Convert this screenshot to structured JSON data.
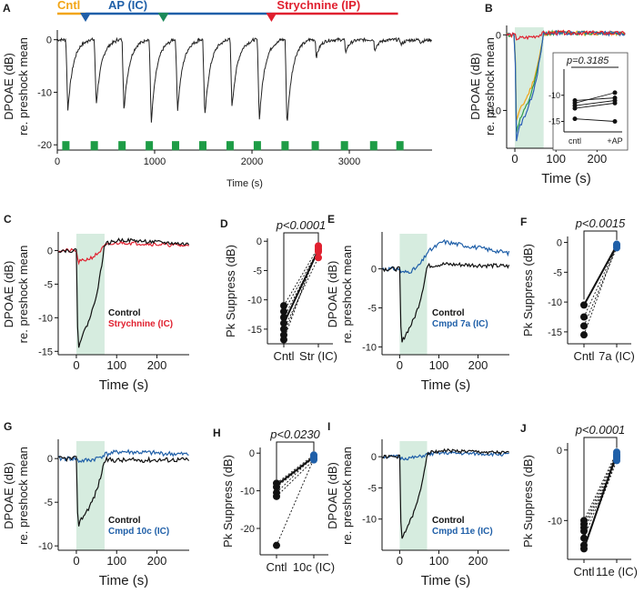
{
  "chart_data": [
    {
      "panel": "A",
      "type": "line",
      "xlabel": "Time (s)",
      "ylabel": "DPOAE (dB) re. preshock mean",
      "xlim": [
        0,
        3850
      ],
      "ylim": [
        -21,
        1.5
      ],
      "xticks": [
        "0",
        "1000",
        "2000",
        "3000"
      ],
      "yticks": [
        "0",
        "-10",
        "-20"
      ],
      "drop_times": [
        88,
        380,
        665,
        945,
        1215,
        1495,
        1775,
        2055,
        2340
      ],
      "drop_depths": [
        -13.5,
        -12.5,
        -13.5,
        -16,
        -13.5,
        -15,
        -13,
        -15.5,
        -16.5
      ],
      "small_drop_times": [
        2650,
        2950,
        3250,
        3520,
        3720
      ],
      "small_drop_depths": [
        -3.5,
        -2.5,
        -2,
        -1,
        -0.5
      ],
      "shock_times": [
        88,
        380,
        665,
        945,
        1215,
        1495,
        1775,
        2055,
        2340,
        2650,
        2950,
        3250,
        3520
      ],
      "protocol_bars": [
        {
          "label": "Cntl",
          "color": "#f2a516",
          "start": 0,
          "end": 290
        },
        {
          "label": "AP (IC)",
          "color": "#1f5fa8",
          "start": 290,
          "end": 2200
        },
        {
          "label": "Strychnine (IP)",
          "color": "#e0202f",
          "start": 2200,
          "end": 3500
        }
      ],
      "markers": [
        {
          "t": 290,
          "color": "#1f5fa8"
        },
        {
          "t": 1090,
          "color": "#1c8a5a"
        },
        {
          "t": 2200,
          "color": "#e0202f"
        }
      ]
    },
    {
      "panel": "B",
      "type": "line",
      "xlabel": "Time (s)",
      "ylabel": "DPOAE (dB) re. preshock mean",
      "xlim": [
        -20,
        270
      ],
      "ylim": [
        -15,
        1
      ],
      "xticks": [
        "0",
        "100",
        "200"
      ],
      "yticks": [
        "0",
        "-10"
      ],
      "shade": [
        0,
        70
      ],
      "series": [
        {
          "name": "orange",
          "color": "#f2a516",
          "min": -11.5
        },
        {
          "name": "green",
          "color": "#2f9a4a",
          "min": -13
        },
        {
          "name": "blue",
          "color": "#2c5fb5",
          "min": -14
        },
        {
          "name": "red",
          "color": "#e0202f",
          "min": -0.5
        }
      ],
      "inset": {
        "p_text": "p=0.3185",
        "categories": [
          "cntl",
          "+AP"
        ],
        "ylim": [
          -17,
          -5
        ],
        "yticks": [
          "-10",
          "-15"
        ],
        "pairs": [
          [
            -11,
            -10.5
          ],
          [
            -11.5,
            -9.5
          ],
          [
            -12,
            -11
          ],
          [
            -12.5,
            -11.5
          ],
          [
            -14.5,
            -15
          ]
        ]
      }
    },
    {
      "panel": "C",
      "type": "line",
      "xlabel": "Time (s)",
      "ylabel": "DPOAE (dB) re. preshock mean",
      "xlim": [
        -45,
        280
      ],
      "ylim": [
        -15.5,
        2.5
      ],
      "xticks": [
        "0",
        "100",
        "200"
      ],
      "yticks": [
        "0",
        "-5",
        "-10",
        "-15"
      ],
      "shade": [
        0,
        70
      ],
      "series": [
        {
          "name": "Control",
          "color": "#111111",
          "min": -15,
          "after": 1.6
        },
        {
          "name": "Strychnine (IC)",
          "color": "#e0202f",
          "min": -1.8,
          "after": 1.2
        }
      ],
      "legend": [
        "Control",
        "Strychnine (IC)"
      ]
    },
    {
      "panel": "D",
      "type": "scatter",
      "ylabel": "Pk Suppress (dB)",
      "categories": [
        "Cntl",
        "Str (IC)"
      ],
      "ylim": [
        -17.5,
        0.5
      ],
      "yticks": [
        "0",
        "-5",
        "-10",
        "-15"
      ],
      "p_text": "p<0.0001",
      "mean_color": "#e0202f",
      "pairs": [
        [
          -11,
          -1
        ],
        [
          -12,
          -1.5
        ],
        [
          -13,
          -1.8
        ],
        [
          -14,
          -1.5
        ],
        [
          -15,
          -2.8
        ],
        [
          -16,
          -1.3
        ],
        [
          -16.8,
          -0.8
        ]
      ],
      "mean": [
        -14,
        -1.5
      ]
    },
    {
      "panel": "E",
      "type": "line",
      "xlabel": "Time (s)",
      "ylabel": "DPOAE (dB) re. preshock mean",
      "xlim": [
        -45,
        280
      ],
      "ylim": [
        -11,
        4.5
      ],
      "xticks": [
        "0",
        "100",
        "200"
      ],
      "yticks": [
        "0",
        "-5",
        "-10"
      ],
      "shade": [
        0,
        70
      ],
      "series": [
        {
          "name": "Control",
          "color": "#111111",
          "min": -10,
          "after": 0.6
        },
        {
          "name": "Cmpd 7a (IC)",
          "color": "#1f5fa8",
          "min": -0.5,
          "after": 3.5
        }
      ],
      "legend": [
        "Control",
        "Cmpd 7a (IC)"
      ]
    },
    {
      "panel": "F",
      "type": "scatter",
      "ylabel": "Pk Suppress (dB)",
      "categories": [
        "Cntl",
        "7a (IC)"
      ],
      "ylim": [
        -17,
        1
      ],
      "yticks": [
        "0",
        "-5",
        "-10",
        "-15"
      ],
      "p_text": "p<0.0015",
      "mean_color": "#1f5fa8",
      "pairs": [
        [
          -10.5,
          -0.3
        ],
        [
          -12.5,
          -0.6
        ],
        [
          -14,
          -0.9
        ],
        [
          -15.5,
          -0.4
        ]
      ],
      "mean": [
        -10.5,
        -0.5
      ]
    },
    {
      "panel": "G",
      "type": "line",
      "xlabel": "Time (s)",
      "ylabel": "DPOAE (dB) re. preshock mean",
      "xlim": [
        -45,
        280
      ],
      "ylim": [
        -10.5,
        2
      ],
      "xticks": [
        "0",
        "100",
        "200"
      ],
      "yticks": [
        "0",
        "-5",
        "-10"
      ],
      "shade": [
        0,
        70
      ],
      "series": [
        {
          "name": "Control",
          "color": "#111111",
          "min": -8,
          "after": -0.2
        },
        {
          "name": "Cmpd 10c (IC)",
          "color": "#1f5fa8",
          "min": -0.3,
          "after": 0.8
        }
      ],
      "legend": [
        "Control",
        "Cmpd 10c (IC)"
      ]
    },
    {
      "panel": "H",
      "type": "scatter",
      "ylabel": "Pk Suppress (dB)",
      "categories": [
        "Cntl",
        "10c (IC)"
      ],
      "ylim": [
        -27,
        1.5
      ],
      "yticks": [
        "0",
        "-10",
        "-20"
      ],
      "p_text": "p<0.0230",
      "mean_color": "#1f5fa8",
      "pairs": [
        [
          -8,
          -0.5
        ],
        [
          -9,
          -1.3
        ],
        [
          -10.5,
          -0.8
        ],
        [
          -11.5,
          -1.8
        ],
        [
          -24.5,
          -1.5
        ]
      ],
      "mean": [
        -8.5,
        -1
      ]
    },
    {
      "panel": "I",
      "type": "line",
      "xlabel": "Time (s)",
      "ylabel": "DPOAE (dB) re. preshock mean",
      "xlim": [
        -45,
        280
      ],
      "ylim": [
        -15,
        2.5
      ],
      "xticks": [
        "0",
        "100",
        "200"
      ],
      "yticks": [
        "0",
        "-5",
        "-10"
      ],
      "shade": [
        0,
        70
      ],
      "series": [
        {
          "name": "Control",
          "color": "#111111",
          "min": -14,
          "after": 1.0
        },
        {
          "name": "Cmpd 11e (IC)",
          "color": "#1f5fa8",
          "min": -0.3,
          "after": 0.6
        }
      ],
      "legend": [
        "Control",
        "Cmpd 11e (IC)"
      ]
    },
    {
      "panel": "J",
      "type": "scatter",
      "ylabel": "Pk Suppress (dB)",
      "categories": [
        "Cntl",
        "11e (IC)"
      ],
      "ylim": [
        -15.5,
        1
      ],
      "yticks": [
        "0",
        "-10"
      ],
      "p_text": "p<0.0001",
      "mean_color": "#1f5fa8",
      "pairs": [
        [
          -10,
          -0.3
        ],
        [
          -10.5,
          -0.6
        ],
        [
          -11,
          -0.9
        ],
        [
          -11.5,
          -1.2
        ],
        [
          -12.5,
          -0.8
        ],
        [
          -13.5,
          -1.5
        ],
        [
          -14,
          -1.0
        ]
      ],
      "mean": [
        -14,
        -0.5
      ]
    }
  ]
}
